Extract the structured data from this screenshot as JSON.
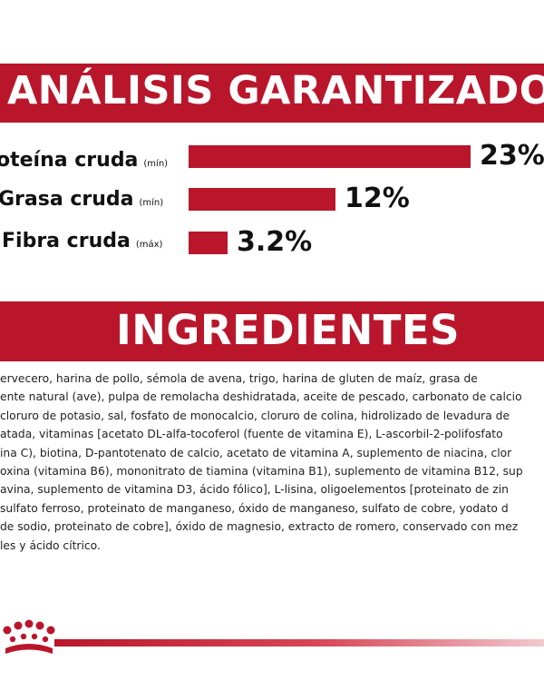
{
  "analysis": {
    "title": "ANÁLISIS GARANTIZADO",
    "rows": [
      {
        "label": "oteína cruda",
        "unit": "(mín)",
        "value": 23,
        "value_text": "23%"
      },
      {
        "label": "Grasa cruda",
        "unit": "(mín)",
        "value": 12,
        "value_text": "12%"
      },
      {
        "label": "Fibra cruda",
        "unit": "(máx)",
        "value": 3.2,
        "value_text": "3.2%"
      }
    ]
  },
  "ingredients": {
    "title": "INGREDIENTES",
    "lines": [
      "ervecero, harina de pollo, sémola de avena, trigo, harina de gluten de maíz, grasa de",
      "ente natural (ave), pulpa de remolacha deshidratada, aceite de pescado, carbonato de calcio",
      "cloruro de potasio, sal, fosfato de monocalcio, cloruro de colina, hidrolizado de levadura de",
      "atada, vitaminas [acetato DL-alfa-tocoferol (fuente de vitamina E), L-ascorbil-2-polifosfato",
      "ina C), biotina, D-pantotenato de calcio, acetato de vitamina A, suplemento de niacina, clor",
      "oxina (vitamina B6), mononitrato de tiamina (vitamina B1), suplemento de vitamina B12, sup",
      "avina, suplemento de vitamina D3, ácido fólico], L-lisina, oligoelementos [proteinato de zin",
      "sulfato ferroso, proteinato de manganeso, óxido de manganeso, sulfato de cobre, yodato d",
      " de sodio, proteinato de cobre], óxido de magnesio, extracto de romero, conservado con mez",
      "les y ácido cítrico."
    ]
  },
  "colors": {
    "brand_red": "#b9162c"
  },
  "logo": {
    "icon": "royal-canin-crown-icon"
  }
}
